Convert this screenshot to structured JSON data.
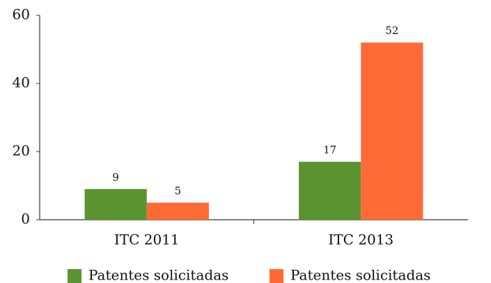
{
  "chart_data": {
    "type": "bar",
    "categories": [
      "ITC 2011",
      "ITC 2013"
    ],
    "series": [
      {
        "name": "Patentes solicitadas",
        "color": "#5b9331",
        "values": [
          9,
          17
        ]
      },
      {
        "name": "Patentes solicitadas",
        "color": "#fe6a35",
        "values": [
          5,
          52
        ]
      }
    ],
    "ylim": [
      0,
      60
    ],
    "yticks": [
      0,
      20,
      40,
      60
    ],
    "grid": false,
    "legend": "bottom"
  }
}
